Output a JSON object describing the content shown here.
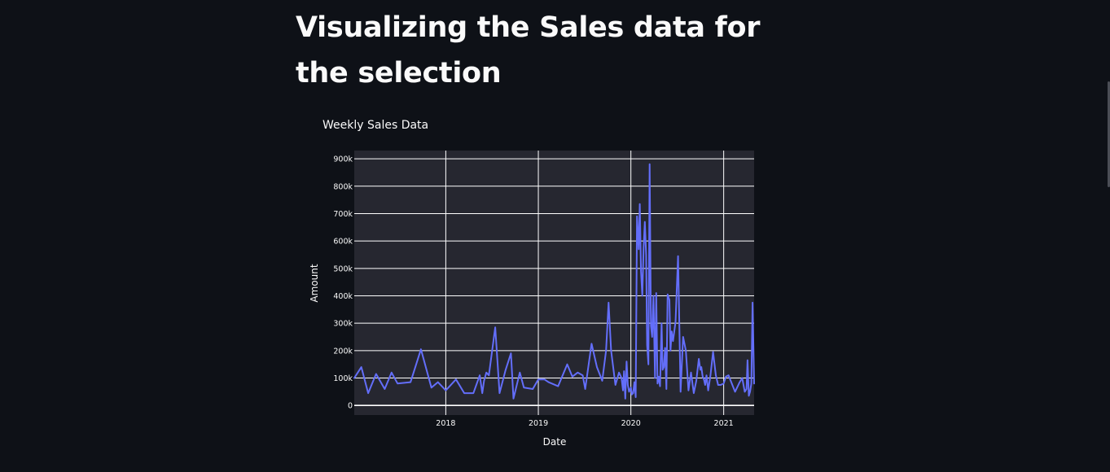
{
  "page": {
    "heading": "Visualizing the Sales data for the selection"
  },
  "colors": {
    "background": "#0e1117",
    "plot_background": "#262730",
    "grid": "#ffffff",
    "line": "#636efa",
    "text": "#fafafa"
  },
  "chart_data": {
    "type": "line",
    "title": "Weekly Sales Data",
    "xlabel": "Date",
    "ylabel": "Amount",
    "xlim": [
      "2017-01-05",
      "2021-05-01"
    ],
    "ylim": [
      -35000,
      930000
    ],
    "x_ticks": [
      {
        "value": "2018-01-01",
        "label": "2018"
      },
      {
        "value": "2019-01-01",
        "label": "2019"
      },
      {
        "value": "2020-01-01",
        "label": "2020"
      },
      {
        "value": "2021-01-01",
        "label": "2021"
      }
    ],
    "y_ticks": [
      {
        "value": 0,
        "label": "0"
      },
      {
        "value": 100000,
        "label": "100k"
      },
      {
        "value": 200000,
        "label": "200k"
      },
      {
        "value": 300000,
        "label": "300k"
      },
      {
        "value": 400000,
        "label": "400k"
      },
      {
        "value": 500000,
        "label": "500k"
      },
      {
        "value": 600000,
        "label": "600k"
      },
      {
        "value": 700000,
        "label": "700k"
      },
      {
        "value": 800000,
        "label": "800k"
      },
      {
        "value": 900000,
        "label": "900k"
      }
    ],
    "grid": true,
    "series": [
      {
        "x": [
          "2017-01-05",
          "2017-02-02",
          "2017-03-01",
          "2017-04-01",
          "2017-05-05",
          "2017-06-01",
          "2017-06-25",
          "2017-08-15",
          "2017-09-25",
          "2017-11-05",
          "2017-12-01",
          "2018-01-01",
          "2018-02-10",
          "2018-03-15",
          "2018-04-20",
          "2018-05-15",
          "2018-05-25",
          "2018-06-01",
          "2018-06-10",
          "2018-06-20",
          "2018-07-15",
          "2018-08-01",
          "2018-08-25",
          "2018-09-15",
          "2018-09-25",
          "2018-10-20",
          "2018-11-05",
          "2018-12-10",
          "2019-01-01",
          "2019-01-25",
          "2019-02-10",
          "2019-03-20",
          "2019-04-25",
          "2019-05-15",
          "2019-06-05",
          "2019-06-25",
          "2019-07-05",
          "2019-07-30",
          "2019-08-20",
          "2019-09-10",
          "2019-09-25",
          "2019-10-05",
          "2019-10-15",
          "2019-11-01",
          "2019-11-15",
          "2019-11-25",
          "2019-12-01",
          "2019-12-05",
          "2019-12-10",
          "2019-12-15",
          "2019-12-20",
          "2019-12-25",
          "2020-01-01",
          "2020-01-05",
          "2020-01-10",
          "2020-01-15",
          "2020-01-20",
          "2020-01-25",
          "2020-02-01",
          "2020-02-05",
          "2020-02-10",
          "2020-02-15",
          "2020-02-20",
          "2020-02-25",
          "2020-03-01",
          "2020-03-05",
          "2020-03-10",
          "2020-03-15",
          "2020-03-20",
          "2020-03-25",
          "2020-03-30",
          "2020-04-05",
          "2020-04-10",
          "2020-04-15",
          "2020-04-20",
          "2020-04-25",
          "2020-05-01",
          "2020-05-05",
          "2020-05-10",
          "2020-05-15",
          "2020-05-20",
          "2020-05-25",
          "2020-06-01",
          "2020-06-05",
          "2020-06-10",
          "2020-06-15",
          "2020-06-25",
          "2020-07-05",
          "2020-07-15",
          "2020-07-25",
          "2020-08-05",
          "2020-08-15",
          "2020-08-25",
          "2020-09-05",
          "2020-09-15",
          "2020-09-25",
          "2020-10-01",
          "2020-10-05",
          "2020-10-10",
          "2020-10-15",
          "2020-10-20",
          "2020-10-25",
          "2020-11-01",
          "2020-11-10",
          "2020-11-20",
          "2020-12-01",
          "2020-12-10",
          "2020-12-20",
          "2021-01-01",
          "2021-01-10",
          "2021-01-20",
          "2021-02-15",
          "2021-03-05",
          "2021-03-15",
          "2021-03-25",
          "2021-04-01",
          "2021-04-05",
          "2021-04-10",
          "2021-04-15",
          "2021-04-20",
          "2021-04-25",
          "2021-05-01"
        ],
        "y": [
          100000,
          140000,
          45000,
          115000,
          60000,
          120000,
          80000,
          85000,
          205000,
          65000,
          85000,
          55000,
          95000,
          45000,
          45000,
          110000,
          45000,
          90000,
          120000,
          110000,
          285000,
          45000,
          130000,
          190000,
          25000,
          120000,
          65000,
          60000,
          95000,
          95000,
          85000,
          70000,
          150000,
          105000,
          120000,
          110000,
          60000,
          225000,
          140000,
          90000,
          200000,
          375000,
          200000,
          75000,
          120000,
          100000,
          55000,
          125000,
          25000,
          160000,
          75000,
          50000,
          65000,
          40000,
          45000,
          85000,
          30000,
          690000,
          570000,
          735000,
          490000,
          400000,
          575000,
          670000,
          550000,
          220000,
          150000,
          880000,
          290000,
          250000,
          400000,
          100000,
          410000,
          80000,
          105000,
          70000,
          300000,
          130000,
          140000,
          210000,
          60000,
          405000,
          385000,
          200000,
          270000,
          235000,
          305000,
          545000,
          50000,
          250000,
          200000,
          55000,
          120000,
          45000,
          90000,
          170000,
          130000,
          140000,
          105000,
          95000,
          75000,
          110000,
          55000,
          110000,
          195000,
          110000,
          75000,
          75000,
          80000,
          105000,
          110000,
          50000,
          85000,
          100000,
          50000,
          60000,
          165000,
          35000,
          50000,
          80000,
          375000,
          80000
        ]
      }
    ]
  }
}
